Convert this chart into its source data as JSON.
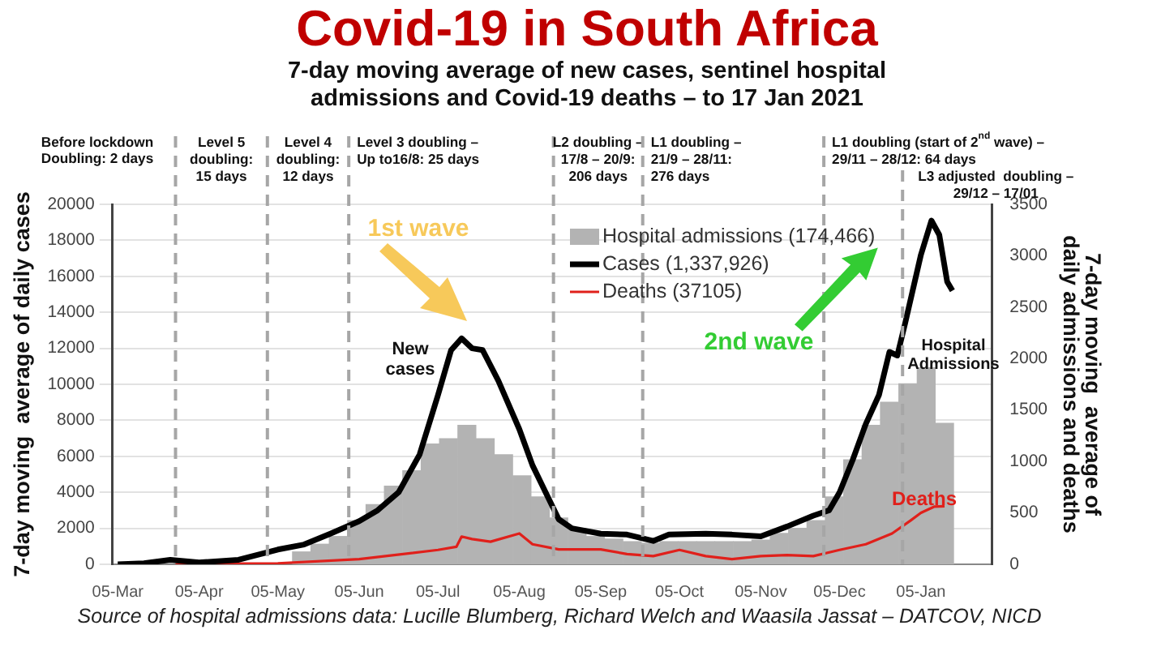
{
  "chart_data": {
    "type": "bar",
    "title": "Covid-19 in South Africa",
    "subtitle": "7-day moving average of new cases, sentinel hospital admissions and Covid-19 deaths – to 17 Jan 2021",
    "ylabel": "7-day moving  average of daily cases",
    "y2label": "7-day moving  average of daily admissions and deaths",
    "xlim": [
      "2020-03-03",
      "2021-02-01"
    ],
    "xticks": [
      {
        "value": "2020-03-05",
        "label": "05-Mar"
      },
      {
        "value": "2020-04-05",
        "label": "05-Apr"
      },
      {
        "value": "2020-05-05",
        "label": "05-May"
      },
      {
        "value": "2020-06-05",
        "label": "05-Jun"
      },
      {
        "value": "2020-07-05",
        "label": "05-Jul"
      },
      {
        "value": "2020-08-05",
        "label": "05-Aug"
      },
      {
        "value": "2020-09-05",
        "label": "05-Sep"
      },
      {
        "value": "2020-10-05",
        "label": "05-Oct"
      },
      {
        "value": "2020-11-05",
        "label": "05-Nov"
      },
      {
        "value": "2020-12-05",
        "label": "05-Dec"
      },
      {
        "value": "2021-01-05",
        "label": "05-Jan"
      }
    ],
    "ylim": [
      0,
      20000
    ],
    "yticks": [
      0,
      2000,
      4000,
      6000,
      8000,
      10000,
      12000,
      14000,
      16000,
      18000,
      20000
    ],
    "y2lim": [
      0,
      3500
    ],
    "y2ticks": [
      0,
      500,
      1000,
      1500,
      2000,
      2500,
      3000,
      3500
    ],
    "grid": "y",
    "legend": "top right",
    "series": [
      {
        "name": "Hospital admissions (174,466)",
        "axis": "y2",
        "color": "#b3b3b3",
        "x": [
          "2020-05-14",
          "2020-05-21",
          "2020-05-28",
          "2020-06-04",
          "2020-06-11",
          "2020-06-18",
          "2020-06-25",
          "2020-07-02",
          "2020-07-09",
          "2020-07-16",
          "2020-07-23",
          "2020-07-30",
          "2020-08-06",
          "2020-08-13",
          "2020-08-20",
          "2020-08-27",
          "2020-09-03",
          "2020-09-10",
          "2020-09-17",
          "2020-09-24",
          "2020-10-01",
          "2020-10-08",
          "2020-10-15",
          "2020-10-22",
          "2020-10-29",
          "2020-11-05",
          "2020-11-12",
          "2020-11-19",
          "2020-11-26",
          "2020-12-03",
          "2020-12-10",
          "2020-12-17",
          "2020-12-24",
          "2020-12-31",
          "2021-01-07",
          "2021-01-14"
        ],
        "values": [
          120,
          195,
          270,
          425,
          580,
          760,
          910,
          1170,
          1220,
          1350,
          1220,
          1065,
          860,
          655,
          450,
          350,
          270,
          245,
          220,
          205,
          220,
          220,
          220,
          220,
          220,
          235,
          300,
          350,
          425,
          655,
          1015,
          1350,
          1575,
          1755,
          1910,
          1370
        ]
      },
      {
        "name": "Cases (1,337,926)",
        "type": "line",
        "axis": "y",
        "color": "#000000",
        "x": [
          "2020-03-05",
          "2020-03-15",
          "2020-03-25",
          "2020-04-05",
          "2020-04-20",
          "2020-05-05",
          "2020-05-15",
          "2020-05-25",
          "2020-06-05",
          "2020-06-12",
          "2020-06-20",
          "2020-06-28",
          "2020-07-05",
          "2020-07-10",
          "2020-07-14",
          "2020-07-18",
          "2020-07-22",
          "2020-07-28",
          "2020-08-05",
          "2020-08-10",
          "2020-08-15",
          "2020-08-20",
          "2020-08-25",
          "2020-09-05",
          "2020-09-15",
          "2020-09-25",
          "2020-10-01",
          "2020-10-15",
          "2020-10-25",
          "2020-11-05",
          "2020-11-15",
          "2020-11-25",
          "2020-12-01",
          "2020-12-05",
          "2020-12-10",
          "2020-12-15",
          "2020-12-20",
          "2020-12-24",
          "2020-12-27",
          "2020-12-30",
          "2021-01-05",
          "2021-01-09",
          "2021-01-12",
          "2021-01-15",
          "2021-01-17"
        ],
        "values": [
          0,
          60,
          250,
          100,
          250,
          820,
          1100,
          1700,
          2400,
          3000,
          4000,
          6100,
          9400,
          11900,
          12550,
          12000,
          11900,
          10200,
          7500,
          5500,
          4000,
          2500,
          2000,
          1700,
          1650,
          1300,
          1650,
          1700,
          1650,
          1550,
          2100,
          2700,
          3000,
          4000,
          5800,
          7800,
          9400,
          11800,
          11600,
          13400,
          17200,
          19100,
          18300,
          15700,
          15200
        ]
      },
      {
        "name": "Deaths (37105)",
        "type": "line",
        "axis": "y2",
        "color": "#e0201b",
        "x": [
          "2020-03-27",
          "2020-04-05",
          "2020-05-05",
          "2020-06-05",
          "2020-07-05",
          "2020-07-12",
          "2020-07-14",
          "2020-07-18",
          "2020-07-25",
          "2020-08-05",
          "2020-08-10",
          "2020-08-20",
          "2020-09-05",
          "2020-09-15",
          "2020-09-25",
          "2020-10-05",
          "2020-10-15",
          "2020-10-25",
          "2020-11-05",
          "2020-11-15",
          "2020-11-25",
          "2020-12-05",
          "2020-12-15",
          "2020-12-25",
          "2021-01-01",
          "2021-01-05",
          "2021-01-10",
          "2021-01-14"
        ],
        "values": [
          0,
          5,
          10,
          50,
          140,
          170,
          270,
          245,
          220,
          300,
          195,
          145,
          145,
          100,
          80,
          140,
          80,
          50,
          80,
          90,
          80,
          140,
          195,
          300,
          425,
          500,
          560,
          565
        ]
      }
    ],
    "ref_lines": [
      {
        "axis": "x",
        "value": "2020-03-27",
        "label": "Level 5\ndoubling:\n15 days",
        "color": "#a6a6a6",
        "line_style": "dashed"
      },
      {
        "axis": "x",
        "value": "2020-05-01",
        "label": "Level 4\ndoubling:\n12 days",
        "color": "#a6a6a6",
        "line_style": "dashed"
      },
      {
        "axis": "x",
        "value": "2020-06-01",
        "label": "Level 3 doubling –\nUp to16/8: 25 days",
        "color": "#a6a6a6",
        "line_style": "dashed"
      },
      {
        "axis": "x",
        "value": "2020-08-18",
        "label": "L2 doubling –\n17/8 – 20/9:\n206 days",
        "color": "#a6a6a6",
        "line_style": "dashed"
      },
      {
        "axis": "x",
        "value": "2020-09-21",
        "label": "L1 doubling –\n21/9 – 28/11:\n276 days",
        "color": "#a6a6a6",
        "line_style": "dashed"
      },
      {
        "axis": "x",
        "value": "2020-11-29",
        "label": "L1 doubling (start of 2$^{nd}$ wave) –\n29/11 – 28/12: 64 days",
        "color": "#a6a6a6",
        "line_style": "dashed"
      },
      {
        "axis": "x",
        "value": "2020-12-29",
        "label": "L3 adjusted  doubling –\n29/12 – 17/01",
        "color": "#a6a6a6",
        "line_style": "dashed"
      }
    ],
    "annotations": [
      "Before lockdown\nDoubling: 2 days",
      "1st wave",
      "New\ncases",
      "2nd wave",
      "Hospital\nAdmissions",
      "Deaths",
      "Source of hospital admissions data: Lucille Blumberg, Richard Welch and Waasila Jassat – DATCOV, NICD"
    ]
  }
}
